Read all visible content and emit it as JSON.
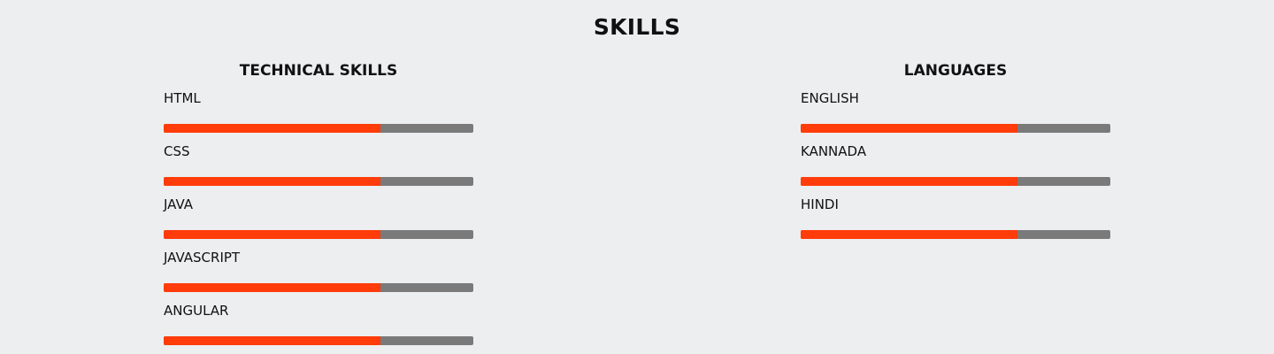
{
  "page": {
    "title": "SKILLS"
  },
  "colors": {
    "background": "#edeef0",
    "bar_fill": "#ff3c0a",
    "bar_track": "#7a7a7a"
  },
  "technical": {
    "title": "TECHNICAL SKILLS",
    "items": [
      {
        "label": "HTML",
        "level": 0.7
      },
      {
        "label": "CSS",
        "level": 0.7
      },
      {
        "label": "JAVA",
        "level": 0.7
      },
      {
        "label": "JAVASCRIPT",
        "level": 0.7
      },
      {
        "label": "ANGULAR",
        "level": 0.7
      }
    ]
  },
  "languages": {
    "title": "LANGUAGES",
    "items": [
      {
        "label": "ENGLISH",
        "level": 0.7
      },
      {
        "label": "KANNADA",
        "level": 0.7
      },
      {
        "label": "HINDI",
        "level": 0.7
      }
    ]
  }
}
